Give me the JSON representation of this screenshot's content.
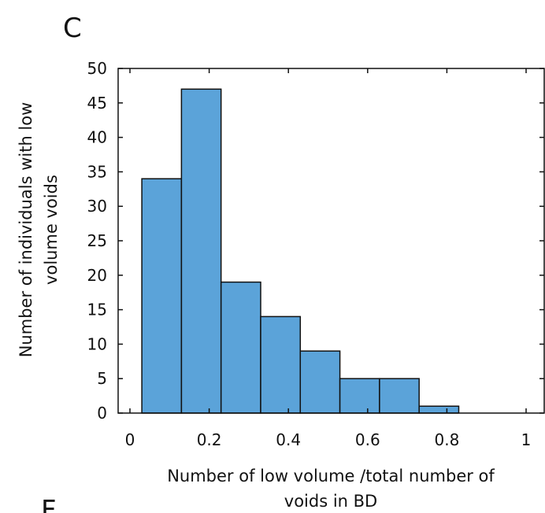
{
  "panel_letter": "C",
  "next_panel_letter": "F",
  "chart_data": {
    "type": "bar",
    "xlabel_lines": [
      "Number of low volume /total number of",
      "voids in BD"
    ],
    "ylabel_lines": [
      "Number of individuals with low",
      "volume voids"
    ],
    "xlim": [
      0,
      1
    ],
    "ylim": [
      0,
      50
    ],
    "x_ticks": [
      0,
      0.2,
      0.4,
      0.6,
      0.8,
      1
    ],
    "x_tick_labels": [
      "0",
      "0.2",
      "0.4",
      "0.6",
      "0.8",
      "1"
    ],
    "y_ticks": [
      0,
      5,
      10,
      15,
      20,
      25,
      30,
      35,
      40,
      45,
      50
    ],
    "y_tick_labels": [
      "0",
      "5",
      "10",
      "15",
      "20",
      "25",
      "30",
      "35",
      "40",
      "45",
      "50"
    ],
    "bin_edges": [
      0.03,
      0.13,
      0.23,
      0.33,
      0.43,
      0.53,
      0.63,
      0.73,
      0.83,
      0.93,
      1.03
    ],
    "values": [
      34,
      47,
      19,
      14,
      9,
      5,
      5,
      1,
      0,
      0
    ],
    "bar_color": "#5ba3d9",
    "grid": false
  }
}
